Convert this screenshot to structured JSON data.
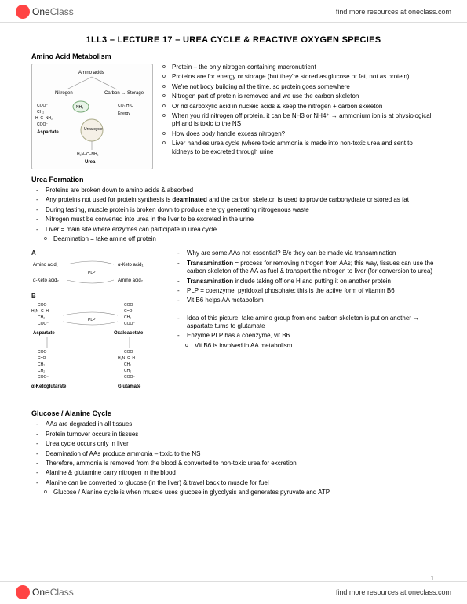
{
  "brand": {
    "name_part1": "One",
    "name_part2": "Class"
  },
  "header_link": "find more resources at oneclass.com",
  "footer_link": "find more resources at oneclass.com",
  "page_number": "1",
  "title": "1LL3 – LECTURE 17 – UREA CYCLE & REACTIVE OXYGEN SPECIES",
  "sections": {
    "aa_metabolism": {
      "heading": "Amino Acid Metabolism",
      "diagram": {
        "top": "Amino acids",
        "left": "Nitrogen",
        "right": "Carbon → Storage",
        "nh3": "NH₃",
        "co2": "CO₂,H₂O",
        "energy": "Energy",
        "asp": "Aspartate",
        "cycle": "Urea cycle",
        "urea": "Urea",
        "urea_formula": "H₂N–C–NH₂"
      },
      "bullets": [
        "Protein – the only nitrogen-containing macronutrient",
        "Proteins are for energy or storage (but they're stored as glucose or fat, not as protein)",
        "We're not body building all the time, so protein goes somewhere",
        "Nitrogen part of protein is removed and we use the carbon skeleton",
        "Or rid carboxylic acid in nucleic acids & keep the nitrogen + carbon skeleton",
        "When you rid nitrogen off protein, it can be NH3 or NH4⁺ → ammonium ion is at physiological pH and is toxic to the NS",
        "How does body handle excess nitrogen?",
        "Liver handles urea cycle (where toxic ammonia is made into non-toxic urea and sent to kidneys to be excreted through urine"
      ]
    },
    "urea_formation": {
      "heading": "Urea Formation",
      "dashes": [
        "Proteins are broken down to amino acids & absorbed",
        "Any proteins not used for protein synthesis is <b>deaminated</b> and the carbon skeleton is used to provide carbohydrate or stored as fat",
        "During fasting, muscle protein is broken down to produce energy generating nitrogenous waste",
        "Nitrogen must be converted into urea in the liver to be excreted in the urine",
        "Liver = main site where enzymes can participate in urea cycle"
      ],
      "sub_bullet": "Deamination = take amine off protein"
    },
    "transamination": {
      "labels": {
        "a": "A",
        "b": "B",
        "aa1": "Amino acid₁",
        "ka1": "α-Keto acid₁",
        "ka2": "α-Keto acid₂",
        "aa2": "Amino acid₂",
        "plp": "PLP",
        "asp": "Aspartate",
        "oaa": "Oxaloacetate",
        "akg": "α-Ketoglutarate",
        "glu": "Glutamate",
        "coo": "COO⁻",
        "ch2": "CH₂",
        "c_o": "C=O",
        "h2n": "H₂N"
      },
      "dashes_top": [
        "Why are some AAs not essential? B/c they can be made via transamination",
        "<b>Transamination</b> = process for removing nitrogen from AAs; this way, tissues can use the carbon skeleton of the AA as fuel & transport the nitrogen to liver (for conversion to urea)",
        "<b>Transamination</b> include taking off one H and putting it on another protein",
        "PLP = coenzyme, pyridoxal phosphate; this is the active form of vitamin B6",
        "Vit B6 helps AA metabolism"
      ],
      "dashes_bottom": [
        "Idea of this picture: take amino group from one carbon skeleton is put on another → aspartate turns to glutamate",
        "Enzyme PLP has a coenzyme, vit B6"
      ],
      "sub_bullet": "Vit B6 is involved in AA metabolism"
    },
    "glucose_alanine": {
      "heading": "Glucose / Alanine Cycle",
      "dashes": [
        "AAs are degraded in all tissues",
        "Protein turnover occurs in tissues",
        "Urea cycle occurs only in liver",
        "Deamination of AAs produce ammonia – toxic to the NS",
        "Therefore, ammonia is removed from the blood & converted to non-toxic urea for excretion",
        "Alanine & glutamine carry nitrogen in the blood",
        "Alanine can be converted to glucose (in the liver) & travel back to muscle for fuel"
      ],
      "sub_bullet": "Glucose / Alanine cycle is when muscle uses glucose in glycolysis and generates pyruvate and ATP"
    }
  },
  "colors": {
    "logo_red": "#ff4444",
    "border_gray": "#dddddd",
    "text": "#000000",
    "diagram_border": "#bbbbbb"
  }
}
